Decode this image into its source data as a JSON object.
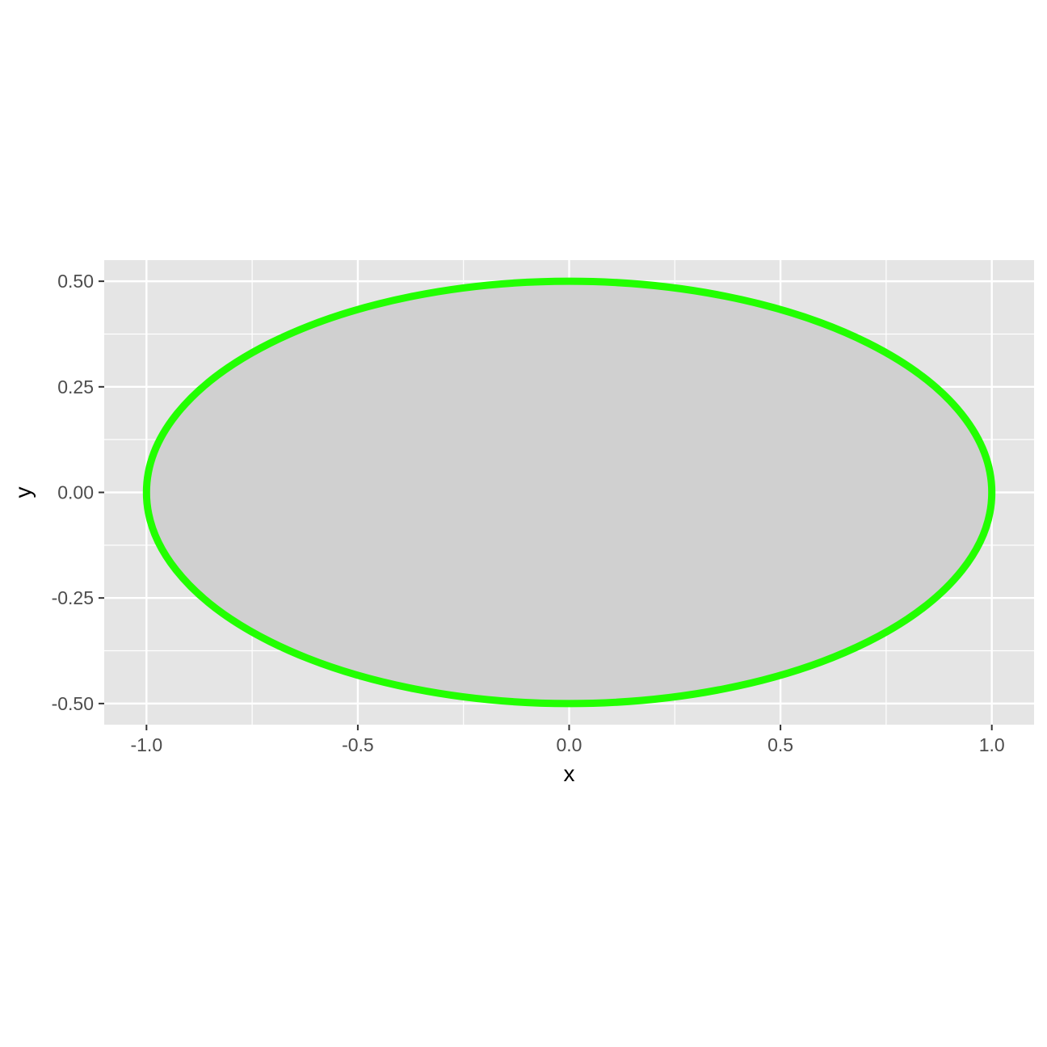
{
  "chart_data": {
    "type": "line",
    "title": "",
    "xlabel": "x",
    "ylabel": "y",
    "xlim": [
      -1.1,
      1.1
    ],
    "ylim": [
      -0.55,
      0.55
    ],
    "x_ticks": [
      -1.0,
      -0.5,
      0.0,
      0.5,
      1.0
    ],
    "x_tick_labels": [
      "-1.0",
      "-0.5",
      "0.0",
      "0.5",
      "1.0"
    ],
    "y_ticks": [
      0.5,
      0.25,
      0.0,
      -0.25,
      -0.5
    ],
    "y_tick_labels": [
      "0.50",
      "0.25",
      "0.00",
      "-0.25",
      "-0.50"
    ],
    "grid": true,
    "legend": "none",
    "series": [
      {
        "shape": "ellipse",
        "center": [
          0,
          0
        ],
        "semi_axis_x": 1.0,
        "semi_axis_y": 0.5,
        "fill_color": "#d0d0d0",
        "stroke_color": "#22ff00"
      }
    ],
    "colors": {
      "panel_background": "#e5e5e5",
      "grid": "#ffffff",
      "tick_mark": "#333333"
    }
  }
}
